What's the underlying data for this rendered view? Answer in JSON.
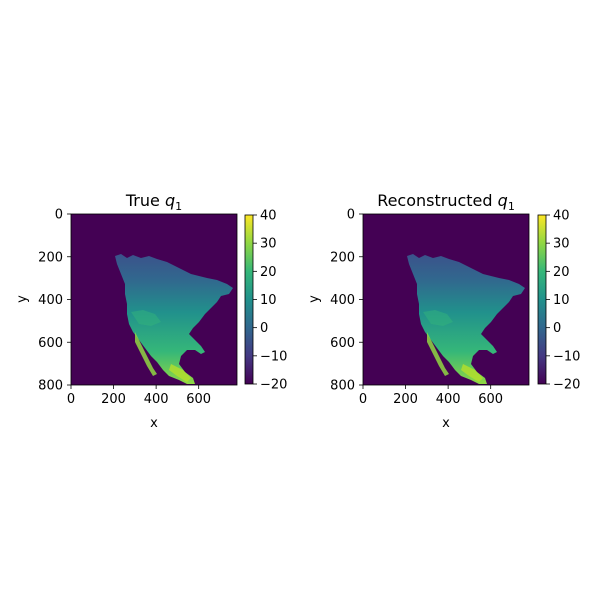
{
  "chart_data": [
    {
      "type": "heatmap",
      "title": "True",
      "title_var": "q",
      "title_sub": "1",
      "xlabel": "x",
      "ylabel": "y",
      "xticks": [
        "0",
        "200",
        "400",
        "600"
      ],
      "yticks": [
        "0",
        "200",
        "400",
        "600",
        "800"
      ],
      "xlim": [
        0,
        780
      ],
      "ylim": [
        800,
        0
      ],
      "colormap": "viridis",
      "colorbar": {
        "min": -20,
        "max": 40,
        "ticks": [
          "40",
          "30",
          "20",
          "10",
          "0",
          "−10",
          "−20"
        ]
      },
      "background_value": -20,
      "content": "gridded field over North America; values roughly -5 in the north to 30 in the south"
    },
    {
      "type": "heatmap",
      "title": "Reconstructed",
      "title_var": "q",
      "title_sub": "1",
      "xlabel": "x",
      "ylabel": "y",
      "xticks": [
        "0",
        "200",
        "400",
        "600"
      ],
      "yticks": [
        "0",
        "200",
        "400",
        "600",
        "800"
      ],
      "xlim": [
        0,
        780
      ],
      "ylim": [
        800,
        0
      ],
      "colormap": "viridis",
      "colorbar": {
        "min": -20,
        "max": 40,
        "ticks": [
          "40",
          "30",
          "20",
          "10",
          "0",
          "−10",
          "−20"
        ]
      },
      "background_value": -20,
      "content": "reconstructed field over North America; visually similar to the true field"
    }
  ],
  "colors": {
    "background": "#440154",
    "viridis": [
      "#440154",
      "#443983",
      "#31688e",
      "#21918c",
      "#35b779",
      "#90d743",
      "#fde725"
    ]
  }
}
